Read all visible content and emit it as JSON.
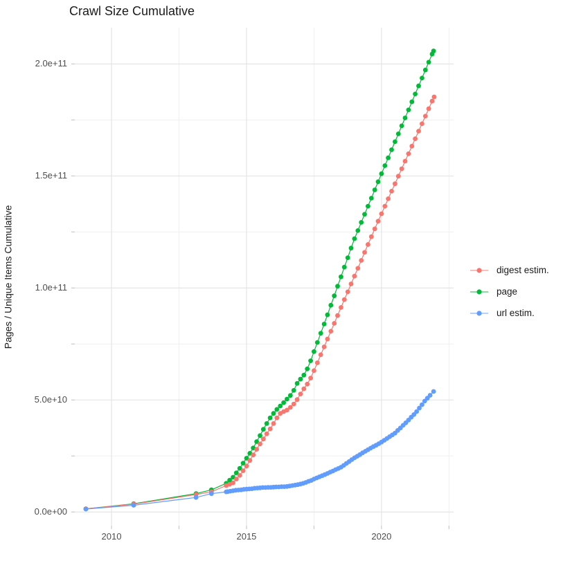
{
  "chart_data": {
    "type": "scatter",
    "title": "Crawl Size Cumulative",
    "xlabel": "",
    "ylabel": "Pages / Unique Items Cumulative",
    "legend_position": "right",
    "grid": true,
    "xlim": [
      2008.64,
      2022.67
    ],
    "ylim": [
      -6100000000.0,
      216200000000.0
    ],
    "x_ticks": {
      "major": [
        2010,
        2015,
        2020
      ],
      "minor": [
        2012.5,
        2017.5,
        2022.5
      ],
      "labels": [
        "2010",
        "2015",
        "2020"
      ]
    },
    "y_ticks": {
      "major": [
        0,
        50000000000.0,
        100000000000.0,
        150000000000.0,
        200000000000.0
      ],
      "minor": [
        25000000000.0,
        75000000000.0,
        125000000000.0,
        175000000000.0
      ],
      "labels": [
        "0.0e+00",
        "5.0e+10",
        "1.0e+11",
        "1.5e+11",
        "2.0e+11"
      ]
    },
    "series": [
      {
        "name": "page",
        "legend_label": "page",
        "color": "#00BA38",
        "points": [
          [
            2009.05,
            1400000000.0
          ],
          [
            2010.82,
            3700000000.0
          ],
          [
            2013.13,
            8200000000.0
          ],
          [
            2013.7,
            9900000000.0
          ],
          [
            2014.25,
            12800000000.0
          ],
          [
            2014.375,
            14200000000.0
          ],
          [
            2014.5,
            15500000000.0
          ],
          [
            2014.625,
            17500000000.0
          ],
          [
            2014.75,
            19500000000.0
          ],
          [
            2014.875,
            21800000000.0
          ],
          [
            2015.0,
            24000000000.0
          ],
          [
            2015.125,
            26200000000.0
          ],
          [
            2015.25,
            28600000000.0
          ],
          [
            2015.375,
            31400000000.0
          ],
          [
            2015.5,
            34100000000.0
          ],
          [
            2015.625,
            36900000000.0
          ],
          [
            2015.75,
            39500000000.0
          ],
          [
            2015.875,
            42000000000.0
          ],
          [
            2016.0,
            44000000000.0
          ],
          [
            2016.125,
            45800000000.0
          ],
          [
            2016.25,
            47300000000.0
          ],
          [
            2016.375,
            48800000000.0
          ],
          [
            2016.5,
            50400000000.0
          ],
          [
            2016.625,
            52000000000.0
          ],
          [
            2016.75,
            54300000000.0
          ],
          [
            2016.875,
            57400000000.0
          ],
          [
            2017.0,
            59300000000.0
          ],
          [
            2017.125,
            61100000000.0
          ],
          [
            2017.25,
            63900000000.0
          ],
          [
            2017.375,
            67500000000.0
          ],
          [
            2017.5,
            71600000000.0
          ],
          [
            2017.625,
            75700000000.0
          ],
          [
            2017.75,
            79800000000.0
          ],
          [
            2017.875,
            83900000000.0
          ],
          [
            2018.0,
            88000000000.0
          ],
          [
            2018.125,
            92300000000.0
          ],
          [
            2018.25,
            96500000000.0
          ],
          [
            2018.375,
            100800000000.0
          ],
          [
            2018.5,
            105000000000.0
          ],
          [
            2018.625,
            109300000000.0
          ],
          [
            2018.75,
            113500000000.0
          ],
          [
            2018.875,
            117800000000.0
          ],
          [
            2019.0,
            122000000000.0
          ],
          [
            2019.125,
            125600000000.0
          ],
          [
            2019.25,
            129300000000.0
          ],
          [
            2019.375,
            132900000000.0
          ],
          [
            2019.5,
            136500000000.0
          ],
          [
            2019.625,
            140100000000.0
          ],
          [
            2019.75,
            143800000000.0
          ],
          [
            2019.875,
            147400000000.0
          ],
          [
            2020.0,
            151000000000.0
          ],
          [
            2020.125,
            154600000000.0
          ],
          [
            2020.25,
            158100000000.0
          ],
          [
            2020.375,
            161700000000.0
          ],
          [
            2020.5,
            165300000000.0
          ],
          [
            2020.625,
            168800000000.0
          ],
          [
            2020.75,
            172400000000.0
          ],
          [
            2020.875,
            175900000000.0
          ],
          [
            2021.0,
            179500000000.0
          ],
          [
            2021.125,
            183100000000.0
          ],
          [
            2021.25,
            186600000000.0
          ],
          [
            2021.375,
            190200000000.0
          ],
          [
            2021.5,
            193700000000.0
          ],
          [
            2021.625,
            197300000000.0
          ],
          [
            2021.75,
            200800000000.0
          ],
          [
            2021.875,
            204400000000.0
          ],
          [
            2021.93,
            205800000000.0
          ]
        ]
      },
      {
        "name": "digest estim.",
        "legend_label": "digest estim.",
        "color": "#F8766D",
        "points": [
          [
            2009.05,
            1400000000.0
          ],
          [
            2010.82,
            3500000000.0
          ],
          [
            2013.13,
            7800000000.0
          ],
          [
            2013.7,
            9000000000.0
          ],
          [
            2014.25,
            11800000000.0
          ],
          [
            2014.375,
            12400000000.0
          ],
          [
            2014.5,
            13000000000.0
          ],
          [
            2014.625,
            14700000000.0
          ],
          [
            2014.75,
            16300000000.0
          ],
          [
            2014.875,
            18400000000.0
          ],
          [
            2015.0,
            20500000000.0
          ],
          [
            2015.125,
            23000000000.0
          ],
          [
            2015.25,
            25500000000.0
          ],
          [
            2015.375,
            28000000000.0
          ],
          [
            2015.5,
            30400000000.0
          ],
          [
            2015.625,
            32600000000.0
          ],
          [
            2015.75,
            34900000000.0
          ],
          [
            2015.875,
            37100000000.0
          ],
          [
            2016.0,
            39500000000.0
          ],
          [
            2016.125,
            42000000000.0
          ],
          [
            2016.25,
            44000000000.0
          ],
          [
            2016.375,
            44800000000.0
          ],
          [
            2016.5,
            45500000000.0
          ],
          [
            2016.625,
            46700000000.0
          ],
          [
            2016.75,
            48200000000.0
          ],
          [
            2016.875,
            50200000000.0
          ],
          [
            2017.0,
            52700000000.0
          ],
          [
            2017.125,
            55000000000.0
          ],
          [
            2017.25,
            57100000000.0
          ],
          [
            2017.375,
            59800000000.0
          ],
          [
            2017.5,
            63100000000.0
          ],
          [
            2017.625,
            66600000000.0
          ],
          [
            2017.75,
            70200000000.0
          ],
          [
            2017.875,
            73700000000.0
          ],
          [
            2018.0,
            77200000000.0
          ],
          [
            2018.125,
            80700000000.0
          ],
          [
            2018.25,
            84200000000.0
          ],
          [
            2018.375,
            87700000000.0
          ],
          [
            2018.5,
            91300000000.0
          ],
          [
            2018.625,
            94800000000.0
          ],
          [
            2018.75,
            98300000000.0
          ],
          [
            2018.875,
            101800000000.0
          ],
          [
            2019.0,
            105300000000.0
          ],
          [
            2019.125,
            108800000000.0
          ],
          [
            2019.25,
            112300000000.0
          ],
          [
            2019.375,
            115900000000.0
          ],
          [
            2019.5,
            119400000000.0
          ],
          [
            2019.625,
            122900000000.0
          ],
          [
            2019.75,
            126400000000.0
          ],
          [
            2019.875,
            129800000000.0
          ],
          [
            2020.0,
            133100000000.0
          ],
          [
            2020.125,
            136500000000.0
          ],
          [
            2020.25,
            139800000000.0
          ],
          [
            2020.375,
            143200000000.0
          ],
          [
            2020.5,
            146500000000.0
          ],
          [
            2020.625,
            149900000000.0
          ],
          [
            2020.75,
            153200000000.0
          ],
          [
            2020.875,
            156600000000.0
          ],
          [
            2021.0,
            159900000000.0
          ],
          [
            2021.125,
            163300000000.0
          ],
          [
            2021.25,
            166600000000.0
          ],
          [
            2021.375,
            170000000000.0
          ],
          [
            2021.5,
            173300000000.0
          ],
          [
            2021.625,
            176700000000.0
          ],
          [
            2021.75,
            180000000000.0
          ],
          [
            2021.875,
            183400000000.0
          ],
          [
            2021.95,
            185300000000.0
          ]
        ]
      },
      {
        "name": "url estim.",
        "legend_label": "url estim.",
        "color": "#619CFF",
        "points": [
          [
            2009.05,
            1300000000.0
          ],
          [
            2010.82,
            3000000000.0
          ],
          [
            2013.13,
            6500000000.0
          ],
          [
            2013.7,
            8200000000.0
          ],
          [
            2014.25,
            9000000000.0
          ],
          [
            2014.3,
            9100000000.0
          ],
          [
            2014.4,
            9300000000.0
          ],
          [
            2014.5,
            9500000000.0
          ],
          [
            2014.6,
            9700000000.0
          ],
          [
            2014.7,
            9800000000.0
          ],
          [
            2014.8,
            9900000000.0
          ],
          [
            2014.9,
            10100000000.0
          ],
          [
            2015.0,
            10200000000.0
          ],
          [
            2015.1,
            10300000000.0
          ],
          [
            2015.2,
            10400000000.0
          ],
          [
            2015.3,
            10600000000.0
          ],
          [
            2015.4,
            10700000000.0
          ],
          [
            2015.5,
            10800000000.0
          ],
          [
            2015.6,
            10900000000.0
          ],
          [
            2015.7,
            10900000000.0
          ],
          [
            2015.8,
            11000000000.0
          ],
          [
            2015.9,
            11000000000.0
          ],
          [
            2016.0,
            11100000000.0
          ],
          [
            2016.1,
            11200000000.0
          ],
          [
            2016.2,
            11200000000.0
          ],
          [
            2016.3,
            11300000000.0
          ],
          [
            2016.4,
            11300000000.0
          ],
          [
            2016.5,
            11400000000.0
          ],
          [
            2016.6,
            11600000000.0
          ],
          [
            2016.7,
            11800000000.0
          ],
          [
            2016.8,
            12000000000.0
          ],
          [
            2016.9,
            12200000000.0
          ],
          [
            2017.0,
            12500000000.0
          ],
          [
            2017.1,
            12800000000.0
          ],
          [
            2017.2,
            13200000000.0
          ],
          [
            2017.3,
            13700000000.0
          ],
          [
            2017.4,
            14100000000.0
          ],
          [
            2017.5,
            14700000000.0
          ],
          [
            2017.6,
            15200000000.0
          ],
          [
            2017.7,
            15700000000.0
          ],
          [
            2017.8,
            16200000000.0
          ],
          [
            2017.9,
            16700000000.0
          ],
          [
            2018.0,
            17200000000.0
          ],
          [
            2018.1,
            17800000000.0
          ],
          [
            2018.2,
            18300000000.0
          ],
          [
            2018.3,
            18900000000.0
          ],
          [
            2018.4,
            19400000000.0
          ],
          [
            2018.5,
            20000000000.0
          ],
          [
            2018.6,
            20800000000.0
          ],
          [
            2018.7,
            21700000000.0
          ],
          [
            2018.8,
            22500000000.0
          ],
          [
            2018.9,
            23400000000.0
          ],
          [
            2019.0,
            24200000000.0
          ],
          [
            2019.1,
            24900000000.0
          ],
          [
            2019.2,
            25600000000.0
          ],
          [
            2019.3,
            26400000000.0
          ],
          [
            2019.4,
            27100000000.0
          ],
          [
            2019.5,
            27800000000.0
          ],
          [
            2019.6,
            28500000000.0
          ],
          [
            2019.7,
            29200000000.0
          ],
          [
            2019.8,
            29800000000.0
          ],
          [
            2019.9,
            30500000000.0
          ],
          [
            2020.0,
            31200000000.0
          ],
          [
            2020.1,
            32000000000.0
          ],
          [
            2020.2,
            32800000000.0
          ],
          [
            2020.3,
            33600000000.0
          ],
          [
            2020.4,
            34400000000.0
          ],
          [
            2020.5,
            35200000000.0
          ],
          [
            2020.6,
            36400000000.0
          ],
          [
            2020.7,
            37500000000.0
          ],
          [
            2020.8,
            38700000000.0
          ],
          [
            2020.9,
            39800000000.0
          ],
          [
            2021.0,
            41000000000.0
          ],
          [
            2021.1,
            42300000000.0
          ],
          [
            2021.2,
            43500000000.0
          ],
          [
            2021.3,
            44800000000.0
          ],
          [
            2021.4,
            46400000000.0
          ],
          [
            2021.5,
            47900000000.0
          ],
          [
            2021.6,
            49500000000.0
          ],
          [
            2021.7,
            50800000000.0
          ],
          [
            2021.8,
            52100000000.0
          ],
          [
            2021.93,
            53800000000.0
          ]
        ]
      }
    ],
    "legend_order": [
      "digest estim.",
      "page",
      "url estim."
    ],
    "colors": {
      "digest_estim": "#F8766D",
      "page": "#00BA38",
      "url_estim": "#619CFF",
      "grid_major": "#e4e4e4",
      "grid_minor": "#f0f0f0",
      "tick": "#c9c9c9",
      "axis_text": "#4d4d4d",
      "title_text": "#1a1a1a"
    }
  }
}
